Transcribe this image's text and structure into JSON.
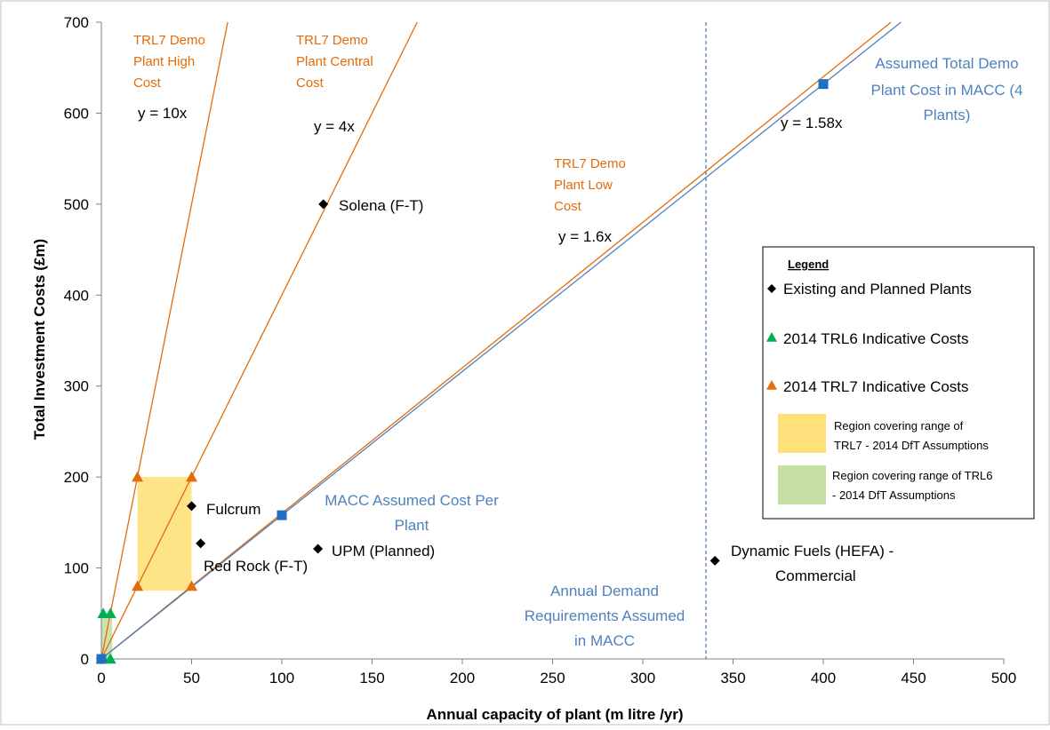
{
  "chart_data": {
    "type": "scatter",
    "title": "",
    "xlabel": "Annual capacity of plant (m litre /yr)",
    "ylabel": "Total Investment Costs (£m)",
    "xlim": [
      0,
      500
    ],
    "ylim": [
      0,
      700
    ],
    "x_ticks": [
      "0",
      "50",
      "100",
      "150",
      "200",
      "250",
      "300",
      "350",
      "400",
      "450",
      "500"
    ],
    "y_ticks": [
      "0",
      "100",
      "200",
      "300",
      "400",
      "500",
      "600",
      "700"
    ],
    "grid": false,
    "legend_placement": "right",
    "lines": [
      {
        "label_lines": [
          "TRL7 Demo",
          "Plant High",
          "Cost"
        ],
        "equation": "y = 10x",
        "slope": 10,
        "color": "#e46c0a"
      },
      {
        "label_lines": [
          "TRL7 Demo",
          "Plant Central",
          "Cost"
        ],
        "equation": "y = 4x",
        "slope": 4,
        "color": "#e46c0a"
      },
      {
        "label_lines": [
          "TRL7 Demo",
          "Plant Low",
          "Cost"
        ],
        "equation": "y = 1.6x",
        "slope": 1.6,
        "color": "#e46c0a"
      },
      {
        "equation": "y = 1.58x",
        "slope": 1.58,
        "color": "#4f81bd"
      }
    ],
    "existing_plants": [
      {
        "name": "Solena (F-T)",
        "x": 123,
        "y": 500
      },
      {
        "name": "Fulcrum",
        "x": 50,
        "y": 168
      },
      {
        "name": "Red Rock (F-T)",
        "x": 55,
        "y": 127
      },
      {
        "name": "UPM (Planned)",
        "x": 120,
        "y": 121
      },
      {
        "name_lines": [
          "Dynamic Fuels (HEFA) -",
          "Commercial"
        ],
        "x": 340,
        "y": 108
      }
    ],
    "trl6_points": [
      {
        "x": 1,
        "y": 50
      },
      {
        "x": 5,
        "y": 50
      },
      {
        "x": 1,
        "y": 0
      },
      {
        "x": 5,
        "y": 0
      }
    ],
    "trl7_points": [
      {
        "x": 20,
        "y": 200
      },
      {
        "x": 50,
        "y": 200
      },
      {
        "x": 20,
        "y": 80
      },
      {
        "x": 50,
        "y": 80
      },
      {
        "x": 0,
        "y": 0
      }
    ],
    "macc_points": [
      {
        "x": 0,
        "y": 0
      },
      {
        "x": 100,
        "y": 158
      },
      {
        "x": 400,
        "y": 632
      }
    ],
    "regions": [
      {
        "name": "TRL7",
        "x": [
          20,
          50
        ],
        "y": [
          75,
          200
        ],
        "color": "#ffe07a"
      },
      {
        "name": "TRL6",
        "x": [
          0,
          6
        ],
        "y": [
          0,
          50
        ],
        "color": "#c6e0a4"
      }
    ],
    "vertical_line": {
      "x": 335,
      "style": "dashed",
      "color": "#4f81bd"
    },
    "annotations": {
      "macc_cost_per_plant": [
        "MACC Assumed Cost Per",
        "Plant"
      ],
      "total_demo_cost": [
        "Assumed Total Demo",
        "Plant Cost in MACC (4",
        "Plants)"
      ],
      "annual_demand": [
        "Annual Demand",
        "Requirements Assumed",
        "in MACC"
      ]
    },
    "legend": {
      "title": "Legend",
      "items": [
        {
          "marker": "diamond",
          "color": "#000000",
          "label": "Existing and Planned Plants"
        },
        {
          "marker": "triangle",
          "color": "#00b050",
          "label": "2014 TRL6 Indicative Costs"
        },
        {
          "marker": "triangle",
          "color": "#e46c0a",
          "label": "2014 TRL7 Indicative Costs"
        },
        {
          "marker": "box",
          "color": "#ffe07a",
          "label_lines": [
            "Region covering range of",
            "TRL7 - 2014 DfT Assumptions"
          ]
        },
        {
          "marker": "box",
          "color": "#c6e0a4",
          "label_lines": [
            "Region covering range of TRL6",
            "- 2014 DfT Assumptions"
          ]
        }
      ]
    }
  }
}
